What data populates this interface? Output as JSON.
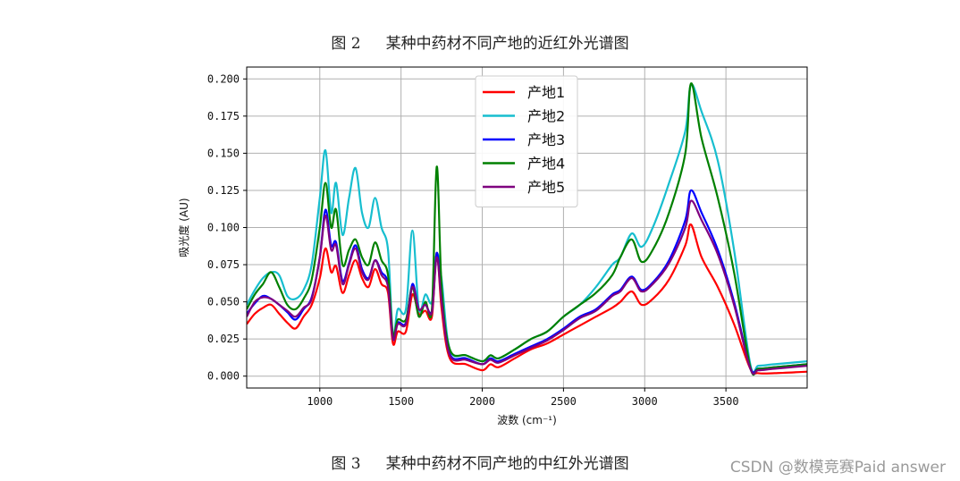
{
  "captions": {
    "top_num": "图 2",
    "top_text": "某种中药材不同产地的近红外光谱图",
    "bottom_num": "图 3",
    "bottom_text": "某种中药材不同产地的中红外光谱图"
  },
  "watermark": "CSDN @数模竞赛Paid answer",
  "chart_data": {
    "type": "line",
    "xlabel": "波数 (cm⁻¹)",
    "ylabel": "吸光度 (AU)",
    "xlim": [
      550,
      4000
    ],
    "ylim": [
      -0.008,
      0.208
    ],
    "xticks": [
      1000,
      1500,
      2000,
      2500,
      3000,
      3500
    ],
    "xtick_labels": [
      "1000",
      "1500",
      "2000",
      "2500",
      "3000",
      "3500"
    ],
    "yticks": [
      0.0,
      0.025,
      0.05,
      0.075,
      0.1,
      0.125,
      0.15,
      0.175,
      0.2
    ],
    "ytick_labels": [
      "0.000",
      "0.025",
      "0.050",
      "0.075",
      "0.100",
      "0.125",
      "0.150",
      "0.175",
      "0.200"
    ],
    "grid": true,
    "legend_position": "top-center",
    "x": [
      550,
      600,
      650,
      700,
      750,
      800,
      850,
      900,
      950,
      1000,
      1035,
      1070,
      1100,
      1140,
      1180,
      1220,
      1260,
      1300,
      1340,
      1380,
      1420,
      1450,
      1480,
      1530,
      1570,
      1610,
      1650,
      1690,
      1720,
      1750,
      1800,
      1900,
      2000,
      2050,
      2100,
      2200,
      2300,
      2400,
      2500,
      2600,
      2700,
      2800,
      2850,
      2920,
      2980,
      3050,
      3150,
      3250,
      3285,
      3350,
      3450,
      3550,
      3650,
      3700,
      3800,
      4000
    ],
    "series": [
      {
        "name": "产地1",
        "color": "#ff0000",
        "values": [
          0.035,
          0.042,
          0.046,
          0.048,
          0.042,
          0.036,
          0.032,
          0.04,
          0.048,
          0.066,
          0.086,
          0.07,
          0.074,
          0.056,
          0.068,
          0.078,
          0.066,
          0.06,
          0.072,
          0.062,
          0.056,
          0.022,
          0.03,
          0.03,
          0.055,
          0.042,
          0.044,
          0.04,
          0.083,
          0.045,
          0.012,
          0.008,
          0.004,
          0.008,
          0.006,
          0.012,
          0.018,
          0.022,
          0.028,
          0.034,
          0.04,
          0.046,
          0.05,
          0.057,
          0.048,
          0.052,
          0.065,
          0.088,
          0.102,
          0.08,
          0.06,
          0.035,
          0.005,
          0.002,
          0.002,
          0.003
        ]
      },
      {
        "name": "产地2",
        "color": "#17becf",
        "values": [
          0.048,
          0.058,
          0.066,
          0.07,
          0.068,
          0.054,
          0.052,
          0.058,
          0.075,
          0.12,
          0.152,
          0.11,
          0.13,
          0.095,
          0.12,
          0.14,
          0.11,
          0.1,
          0.12,
          0.1,
          0.085,
          0.028,
          0.045,
          0.045,
          0.098,
          0.045,
          0.055,
          0.05,
          0.082,
          0.065,
          0.018,
          0.014,
          0.01,
          0.014,
          0.012,
          0.018,
          0.025,
          0.03,
          0.04,
          0.048,
          0.06,
          0.075,
          0.08,
          0.096,
          0.087,
          0.1,
          0.13,
          0.165,
          0.196,
          0.178,
          0.145,
          0.085,
          0.008,
          0.007,
          0.008,
          0.01
        ]
      },
      {
        "name": "产地3",
        "color": "#0000ff",
        "values": [
          0.042,
          0.049,
          0.054,
          0.052,
          0.048,
          0.043,
          0.038,
          0.045,
          0.053,
          0.08,
          0.112,
          0.088,
          0.09,
          0.064,
          0.076,
          0.088,
          0.072,
          0.066,
          0.078,
          0.07,
          0.062,
          0.026,
          0.036,
          0.036,
          0.062,
          0.045,
          0.048,
          0.044,
          0.083,
          0.052,
          0.015,
          0.012,
          0.008,
          0.012,
          0.01,
          0.015,
          0.02,
          0.025,
          0.032,
          0.04,
          0.045,
          0.055,
          0.058,
          0.067,
          0.058,
          0.063,
          0.078,
          0.105,
          0.125,
          0.11,
          0.085,
          0.05,
          0.006,
          0.005,
          0.006,
          0.008
        ]
      },
      {
        "name": "产地4",
        "color": "#008000",
        "values": [
          0.045,
          0.055,
          0.062,
          0.07,
          0.06,
          0.048,
          0.045,
          0.052,
          0.065,
          0.1,
          0.13,
          0.1,
          0.112,
          0.075,
          0.085,
          0.092,
          0.08,
          0.075,
          0.09,
          0.078,
          0.068,
          0.028,
          0.038,
          0.038,
          0.06,
          0.04,
          0.05,
          0.045,
          0.141,
          0.06,
          0.018,
          0.014,
          0.01,
          0.014,
          0.012,
          0.018,
          0.025,
          0.03,
          0.04,
          0.048,
          0.056,
          0.068,
          0.08,
          0.092,
          0.077,
          0.085,
          0.11,
          0.15,
          0.197,
          0.16,
          0.12,
          0.07,
          0.006,
          0.005,
          0.006,
          0.008
        ]
      },
      {
        "name": "产地5",
        "color": "#7f007f",
        "values": [
          0.04,
          0.05,
          0.053,
          0.052,
          0.048,
          0.044,
          0.04,
          0.046,
          0.052,
          0.08,
          0.108,
          0.085,
          0.088,
          0.062,
          0.075,
          0.086,
          0.07,
          0.065,
          0.078,
          0.068,
          0.06,
          0.025,
          0.035,
          0.035,
          0.06,
          0.045,
          0.048,
          0.043,
          0.08,
          0.05,
          0.014,
          0.011,
          0.008,
          0.011,
          0.009,
          0.014,
          0.019,
          0.024,
          0.031,
          0.039,
          0.044,
          0.054,
          0.057,
          0.066,
          0.057,
          0.062,
          0.076,
          0.1,
          0.118,
          0.105,
          0.082,
          0.048,
          0.005,
          0.004,
          0.005,
          0.007
        ]
      }
    ]
  }
}
